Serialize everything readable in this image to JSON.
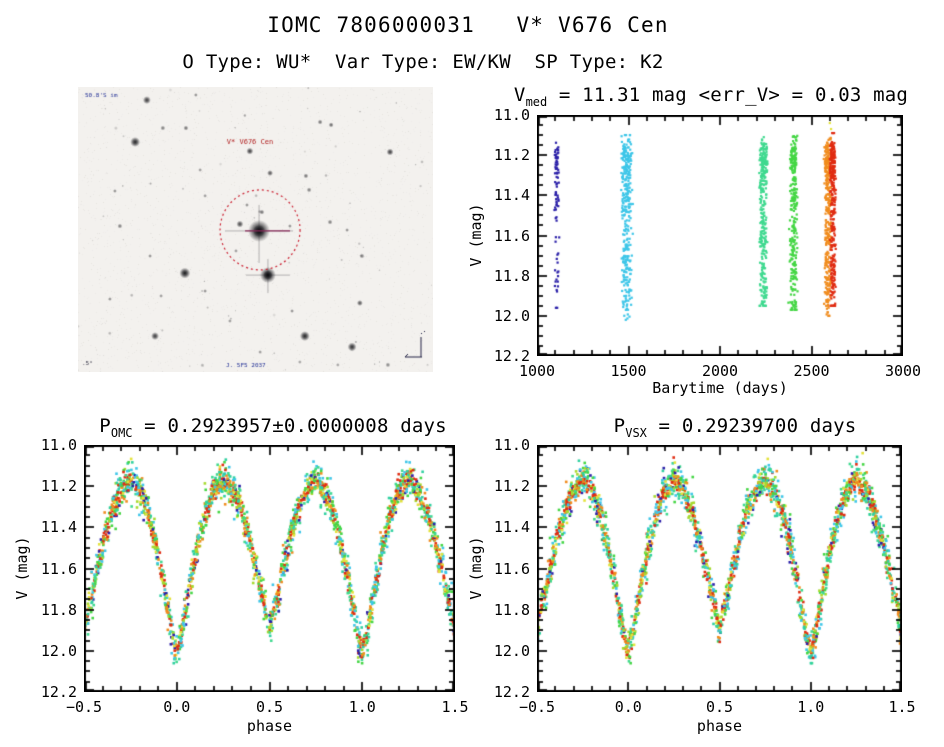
{
  "page": {
    "title": "IOMC 7806000031   V* V676 Cen",
    "subtitle": "O Type: WU*  Var Type: EW/KW  SP Type: K2"
  },
  "finder_chart": {
    "target_label": "V* V676 Cen",
    "target_label_color": "#b22222",
    "corner_text_top_left": "50.8'S im",
    "corner_text_bottom_left": ".5°",
    "corner_text_bottom_center": "J. 5F5 2037",
    "corner_text_color": "#223096",
    "circle_color": "#cc2233",
    "marker_line_color": "#8a2a5a",
    "background": "#f3f1ee",
    "main_star": [
      0.51,
      0.505
    ],
    "second_star": [
      0.535,
      0.66
    ],
    "stars": [
      [
        0.194,
        0.046,
        4,
        0.8
      ],
      [
        0.161,
        0.193,
        5,
        0.9
      ],
      [
        0.239,
        0.144,
        2.5,
        0.55
      ],
      [
        0.304,
        0.144,
        2.5,
        0.6
      ],
      [
        0.332,
        0.028,
        2,
        0.5
      ],
      [
        0.47,
        0.1,
        1.8,
        0.4
      ],
      [
        0.484,
        0.225,
        3.5,
        0.8
      ],
      [
        0.682,
        0.123,
        2.5,
        0.6
      ],
      [
        0.713,
        0.133,
        2.5,
        0.65
      ],
      [
        0.879,
        0.228,
        3.5,
        0.8
      ],
      [
        0.344,
        0.291,
        2,
        0.45
      ],
      [
        0.541,
        0.302,
        3,
        0.7
      ],
      [
        0.642,
        0.312,
        2.5,
        0.6
      ],
      [
        0.104,
        0.365,
        2,
        0.5
      ],
      [
        0.358,
        0.382,
        2,
        0.45
      ],
      [
        0.651,
        0.361,
        2.5,
        0.55
      ],
      [
        0.118,
        0.488,
        2.5,
        0.55
      ],
      [
        0.456,
        0.481,
        3.5,
        0.75
      ],
      [
        0.518,
        0.439,
        2.5,
        0.6
      ],
      [
        0.476,
        0.414,
        2,
        0.5
      ],
      [
        0.597,
        0.488,
        2,
        0.5
      ],
      [
        0.71,
        0.474,
        2.5,
        0.55
      ],
      [
        0.758,
        0.502,
        2,
        0.5
      ],
      [
        0.8,
        0.593,
        2.5,
        0.55
      ],
      [
        0.203,
        0.593,
        2,
        0.5
      ],
      [
        0.301,
        0.653,
        5.5,
        0.95
      ],
      [
        0.358,
        0.716,
        2,
        0.5
      ],
      [
        0.445,
        0.575,
        2,
        0.45
      ],
      [
        0.09,
        0.744,
        2,
        0.5
      ],
      [
        0.234,
        0.733,
        2,
        0.45
      ],
      [
        0.428,
        0.821,
        2,
        0.45
      ],
      [
        0.603,
        0.786,
        2,
        0.5
      ],
      [
        0.639,
        0.874,
        5,
        0.9
      ],
      [
        0.794,
        0.758,
        3,
        0.7
      ],
      [
        0.772,
        0.912,
        4.5,
        0.85
      ],
      [
        0.217,
        0.874,
        4,
        0.8
      ],
      [
        0.513,
        0.93,
        2,
        0.45
      ],
      [
        0.625,
        0.965,
        2,
        0.4
      ],
      [
        0.732,
        0.975,
        2,
        0.4
      ],
      [
        0.873,
        0.975,
        2.5,
        0.5
      ]
    ]
  },
  "chart_data": [
    {
      "id": "barytime",
      "type": "scatter",
      "title": {
        "prefix": "V",
        "sub": "med",
        "rest": " = 11.31 mag <err_V> = 0.03 mag"
      },
      "v_med_mag": 11.31,
      "err_v_mag": 0.03,
      "xlabel": "Barytime (days)",
      "ylabel": "V (mag)",
      "xlim": [
        1000,
        3000
      ],
      "ylim": [
        11.0,
        12.2
      ],
      "y_axis_inverted": true,
      "xticks": [
        1000,
        1500,
        2000,
        2500,
        3000
      ],
      "xtick_labels": [
        "1000",
        "1500",
        "2000",
        "2500",
        "3000"
      ],
      "yticks": [
        11.0,
        11.2,
        11.4,
        11.6,
        11.8,
        12.0,
        12.2
      ],
      "ytick_labels": [
        "11.0",
        "11.2",
        "11.4",
        "11.6",
        "11.8",
        "12.0",
        "12.2"
      ],
      "x_minor_step": 100,
      "y_minor_step": 0.05,
      "noise_sigma": 0.04,
      "bands": [
        {
          "t": 1109,
          "halfwidth": 9,
          "n": 80,
          "color": "#2a1fa8",
          "mag_min": 11.1,
          "mag_max": 11.96
        },
        {
          "t": 1490,
          "halfwidth": 22,
          "n": 340,
          "color": "#3ec6e8",
          "mag_min": 11.1,
          "mag_max": 12.02
        },
        {
          "t": 2237,
          "halfwidth": 18,
          "n": 300,
          "color": "#3fd98f",
          "mag_min": 11.08,
          "mag_max": 11.95
        },
        {
          "t": 2402,
          "halfwidth": 16,
          "n": 280,
          "color": "#44d644",
          "mag_min": 11.07,
          "mag_max": 11.97
        },
        {
          "t": 2590,
          "halfwidth": 14,
          "n": 310,
          "color": "#f08c1e",
          "mag_min": 11.08,
          "mag_max": 12.0
        },
        {
          "t": 2616,
          "halfwidth": 12,
          "n": 310,
          "color": "#e02c12",
          "mag_min": 11.09,
          "mag_max": 11.95
        }
      ],
      "extra_points": [
        {
          "t": 2600,
          "mag": 11.04,
          "color": "#e3e23a"
        },
        {
          "t": 2607,
          "mag": 11.07,
          "color": "#e3e23a"
        }
      ],
      "curve_keypoints": {
        "phase": [
          0.0,
          0.02,
          0.05,
          0.08,
          0.12,
          0.16,
          0.2,
          0.25,
          0.3,
          0.34,
          0.38,
          0.42,
          0.46,
          0.5,
          0.54,
          0.58,
          0.62,
          0.66,
          0.7,
          0.75,
          0.8,
          0.84,
          0.88,
          0.92,
          0.95,
          0.98,
          1.0
        ],
        "mag": [
          12.0,
          11.94,
          11.79,
          11.63,
          11.46,
          11.32,
          11.22,
          11.165,
          11.22,
          11.3,
          11.42,
          11.57,
          11.74,
          11.88,
          11.74,
          11.57,
          11.42,
          11.3,
          11.22,
          11.165,
          11.22,
          11.32,
          11.46,
          11.63,
          11.79,
          11.94,
          12.0
        ]
      }
    },
    {
      "id": "phase_omc",
      "type": "scatter",
      "title": {
        "prefix": "P",
        "sub": "OMC",
        "rest": " = 0.2923957±0.0000008 days"
      },
      "period_days": 0.2923957,
      "period_error_days": 8e-07,
      "xlabel": "phase",
      "ylabel": "V (mag)",
      "xlim": [
        -0.5,
        1.5
      ],
      "ylim": [
        11.0,
        12.2
      ],
      "y_axis_inverted": true,
      "xticks": [
        -0.5,
        0.0,
        0.5,
        1.0,
        1.5
      ],
      "xtick_labels": [
        "−0.5",
        "0.0",
        "0.5",
        "1.0",
        "1.5"
      ],
      "yticks": [
        11.0,
        11.2,
        11.4,
        11.6,
        11.8,
        12.0,
        12.2
      ],
      "ytick_labels": [
        "11.0",
        "11.2",
        "11.4",
        "11.6",
        "11.8",
        "12.0",
        "12.2"
      ],
      "x_minor_step": 0.1,
      "y_minor_step": 0.05,
      "n_points": 2500,
      "noise_sigma": 0.042,
      "outlier_fraction": 0.02,
      "curve_keypoints": {
        "phase": [
          0.0,
          0.02,
          0.05,
          0.08,
          0.12,
          0.16,
          0.2,
          0.25,
          0.3,
          0.34,
          0.38,
          0.42,
          0.46,
          0.5,
          0.54,
          0.58,
          0.62,
          0.66,
          0.7,
          0.75,
          0.8,
          0.84,
          0.88,
          0.92,
          0.95,
          0.98,
          1.0
        ],
        "mag": [
          12.0,
          11.94,
          11.79,
          11.63,
          11.46,
          11.32,
          11.22,
          11.165,
          11.22,
          11.3,
          11.42,
          11.57,
          11.74,
          11.88,
          11.74,
          11.57,
          11.42,
          11.3,
          11.22,
          11.165,
          11.22,
          11.32,
          11.46,
          11.63,
          11.79,
          11.94,
          12.0
        ]
      },
      "palette": [
        {
          "color": "#2a1fa8",
          "w": 0.05,
          "spread": 1.0
        },
        {
          "color": "#3ec6e8",
          "w": 0.14,
          "spread": 1.15
        },
        {
          "color": "#2fd0a0",
          "w": 0.08,
          "spread": 1.1
        },
        {
          "color": "#3fd98f",
          "w": 0.1,
          "spread": 1.1
        },
        {
          "color": "#44d644",
          "w": 0.12,
          "spread": 1.1
        },
        {
          "color": "#a6da2e",
          "w": 0.1,
          "spread": 0.9
        },
        {
          "color": "#e3e23a",
          "w": 0.07,
          "spread": 0.8
        },
        {
          "color": "#f08c1e",
          "w": 0.16,
          "spread": 0.65
        },
        {
          "color": "#e02c12",
          "w": 0.18,
          "spread": 0.6
        }
      ]
    },
    {
      "id": "phase_vsx",
      "type": "scatter",
      "title": {
        "prefix": "P",
        "sub": "VSX",
        "rest": " = 0.29239700 days"
      },
      "period_days": 0.292397,
      "xlabel": "phase",
      "ylabel": "V (mag)",
      "xlim": [
        -0.5,
        1.5
      ],
      "ylim": [
        11.0,
        12.2
      ],
      "y_axis_inverted": true,
      "xticks": [
        -0.5,
        0.0,
        0.5,
        1.0,
        1.5
      ],
      "xtick_labels": [
        "−0.5",
        "0.0",
        "0.5",
        "1.0",
        "1.5"
      ],
      "yticks": [
        11.0,
        11.2,
        11.4,
        11.6,
        11.8,
        12.0,
        12.2
      ],
      "ytick_labels": [
        "11.0",
        "11.2",
        "11.4",
        "11.6",
        "11.8",
        "12.0",
        "12.2"
      ],
      "x_minor_step": 0.1,
      "y_minor_step": 0.05,
      "n_points": 2500,
      "noise_sigma": 0.042,
      "outlier_fraction": 0.02,
      "curve_keypoints": {
        "phase": [
          0.0,
          0.02,
          0.05,
          0.08,
          0.12,
          0.16,
          0.2,
          0.25,
          0.3,
          0.34,
          0.38,
          0.42,
          0.46,
          0.5,
          0.54,
          0.58,
          0.62,
          0.66,
          0.7,
          0.75,
          0.8,
          0.84,
          0.88,
          0.92,
          0.95,
          0.98,
          1.0
        ],
        "mag": [
          12.0,
          11.94,
          11.79,
          11.63,
          11.46,
          11.32,
          11.22,
          11.165,
          11.22,
          11.3,
          11.42,
          11.57,
          11.74,
          11.88,
          11.74,
          11.57,
          11.42,
          11.3,
          11.22,
          11.165,
          11.22,
          11.32,
          11.46,
          11.63,
          11.79,
          11.94,
          12.0
        ]
      },
      "palette": [
        {
          "color": "#2a1fa8",
          "w": 0.05,
          "spread": 1.0
        },
        {
          "color": "#3ec6e8",
          "w": 0.14,
          "spread": 1.15
        },
        {
          "color": "#2fd0a0",
          "w": 0.08,
          "spread": 1.1
        },
        {
          "color": "#3fd98f",
          "w": 0.1,
          "spread": 1.1
        },
        {
          "color": "#44d644",
          "w": 0.12,
          "spread": 1.1
        },
        {
          "color": "#a6da2e",
          "w": 0.1,
          "spread": 0.9
        },
        {
          "color": "#e3e23a",
          "w": 0.07,
          "spread": 0.8
        },
        {
          "color": "#f08c1e",
          "w": 0.16,
          "spread": 0.65
        },
        {
          "color": "#e02c12",
          "w": 0.18,
          "spread": 0.6
        }
      ]
    }
  ]
}
